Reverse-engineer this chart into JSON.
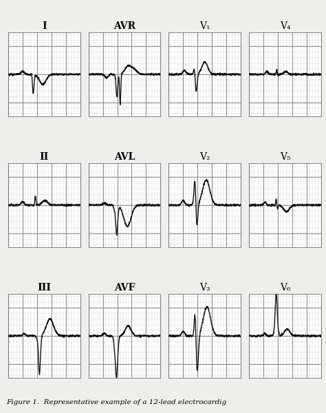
{
  "caption": "Figure 1.  Representative example of a 12-lead electrocardig",
  "background_color": "#ffffff",
  "grid_major_color": "#909090",
  "grid_minor_color": "#d0d0d0",
  "fig_bg": "#f0eeea",
  "leads": [
    "I",
    "AVR",
    "V₁",
    "V₄",
    "II",
    "AVL",
    "V₂",
    "V₅",
    "III",
    "AVF",
    "V₃",
    "V₆"
  ],
  "label_fontsize": 10,
  "caption_fontsize": 7.5,
  "n_rows": 3,
  "n_cols": 4
}
